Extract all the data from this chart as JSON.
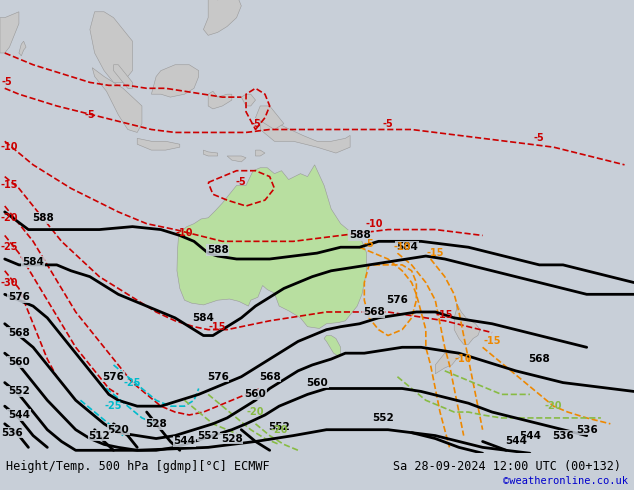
{
  "title_bottom_left": "Height/Temp. 500 hPa [gdmp][°C] ECMWF",
  "title_bottom_right": "Sa 28-09-2024 12:00 UTC (00+132)",
  "watermark": "©weatheronline.co.uk",
  "bg_color": "#c8cfd8",
  "land_color": "#c8c8c8",
  "aus_color": "#b8dfa0",
  "bottom_bar_color": "#e8e8e8",
  "black": "#000000",
  "red": "#cc0000",
  "orange": "#ee8800",
  "cyan": "#00bbcc",
  "green": "#88bb44",
  "blue_link": "#0000cc",
  "fig_w": 6.34,
  "fig_h": 4.9,
  "dpi": 100,
  "lon_min": 76,
  "lon_max": 210,
  "lat_min": -60,
  "lat_max": 17
}
